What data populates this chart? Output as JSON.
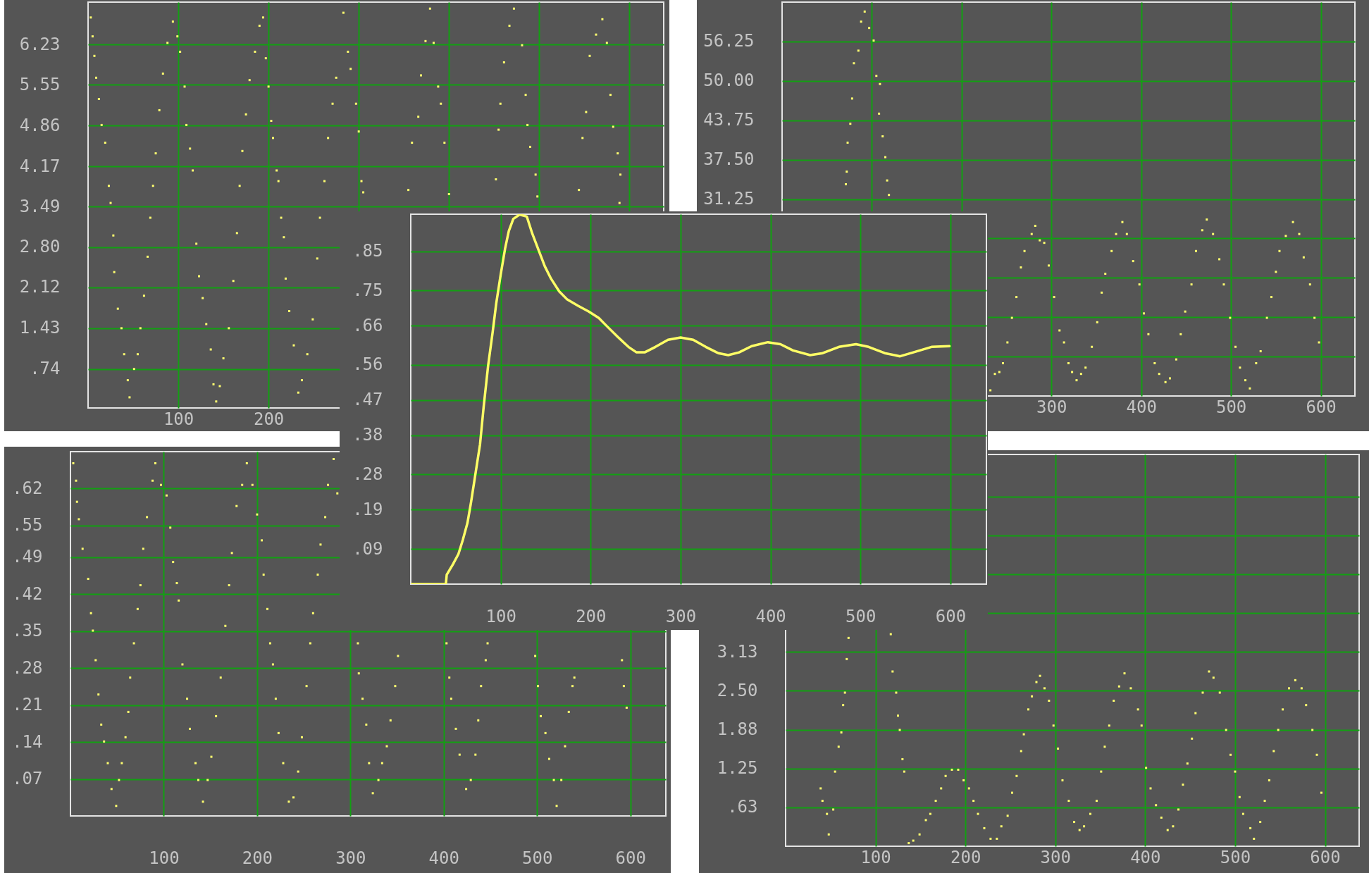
{
  "chart_data": [
    {
      "type": "scatter",
      "marker": "square",
      "color": "#ffff70",
      "grid": true,
      "xlim": [
        0,
        638
      ],
      "ylim": [
        0.08,
        6.95
      ],
      "xticks": [
        100,
        200,
        {
          "value": 300,
          "label": null
        },
        {
          "value": 400,
          "label": null
        },
        {
          "value": 500,
          "label": null
        },
        {
          "value": 600,
          "label": null
        }
      ],
      "yticks": [
        {
          "value": 0.74,
          "label": ".74"
        },
        {
          "value": 1.43,
          "label": "1.43"
        },
        {
          "value": 2.12,
          "label": "2.12"
        },
        {
          "value": 2.8,
          "label": "2.80"
        },
        {
          "value": 3.49,
          "label": "3.49"
        },
        {
          "value": 4.17,
          "label": "4.17"
        },
        {
          "value": 4.86,
          "label": "4.86"
        },
        {
          "value": 5.55,
          "label": "5.55"
        },
        {
          "value": 6.23,
          "label": "6.23"
        }
      ],
      "x": [
        3,
        5,
        7,
        9,
        12,
        15,
        19,
        23,
        25,
        28,
        29,
        33,
        37,
        40,
        44,
        46,
        51,
        55,
        58,
        62,
        66,
        69,
        72,
        75,
        79,
        83,
        88,
        94,
        99,
        102,
        107,
        109,
        113,
        116,
        120,
        123,
        127,
        131,
        136,
        139,
        142,
        146,
        150,
        156,
        161,
        165,
        168,
        171,
        175,
        179,
        185,
        190,
        194,
        197,
        200,
        203,
        205,
        209,
        211,
        214,
        217,
        219,
        223,
        228,
        233,
        237,
        243,
        249,
        254,
        257,
        262,
        266,
        271,
        275,
        283,
        288,
        291,
        297,
        300,
        303,
        305,
        355,
        359,
        366,
        369,
        374,
        379,
        383,
        388,
        391,
        395,
        400,
        452,
        455,
        457,
        461,
        467,
        472,
        481,
        485,
        487,
        490,
        496,
        498,
        544,
        548,
        552,
        556,
        563,
        570,
        575,
        579,
        582,
        587,
        590,
        589
      ],
      "values": [
        6.69,
        6.37,
        6.04,
        5.67,
        5.31,
        4.87,
        4.57,
        3.84,
        3.55,
        3.0,
        2.38,
        1.76,
        1.43,
        0.99,
        0.55,
        0.26,
        0.74,
        0.99,
        1.43,
        1.98,
        2.64,
        3.3,
        3.84,
        4.39,
        5.12,
        5.74,
        6.26,
        6.62,
        6.37,
        6.11,
        5.52,
        4.87,
        4.47,
        4.1,
        2.86,
        2.31,
        1.94,
        1.5,
        1.07,
        0.48,
        0.19,
        0.45,
        0.92,
        1.43,
        2.23,
        3.04,
        3.84,
        4.43,
        5.05,
        5.63,
        6.11,
        6.55,
        6.69,
        6.0,
        5.52,
        4.94,
        4.65,
        4.1,
        3.92,
        3.3,
        2.97,
        2.27,
        1.72,
        1.14,
        0.34,
        0.55,
        0.99,
        1.58,
        2.61,
        3.3,
        3.92,
        4.65,
        5.23,
        5.67,
        6.77,
        6.11,
        5.82,
        5.23,
        4.76,
        3.92,
        3.73,
        3.77,
        4.57,
        5.01,
        5.71,
        6.29,
        6.84,
        6.26,
        5.52,
        5.23,
        4.57,
        3.7,
        3.95,
        4.79,
        5.23,
        5.93,
        6.55,
        6.84,
        6.22,
        5.38,
        4.87,
        4.5,
        4.03,
        3.66,
        3.77,
        4.65,
        5.09,
        6.04,
        6.4,
        6.66,
        6.26,
        5.38,
        4.84,
        4.39,
        4.03,
        3.55
      ]
    },
    {
      "type": "scatter",
      "marker": "square",
      "color": "#ffff70",
      "grid": true,
      "xlim": [
        0,
        638
      ],
      "ylim": [
        0,
        62.5
      ],
      "xticks": [
        {
          "value": 100,
          "label": null
        },
        {
          "value": 200,
          "label": null
        },
        300,
        400,
        500,
        600
      ],
      "yticks": [
        {
          "value": 6.25,
          "label": null
        },
        {
          "value": 12.5,
          "label": null
        },
        {
          "value": 18.75,
          "label": null
        },
        {
          "value": 25,
          "label": null
        },
        {
          "value": 31.25,
          "label": "31.25"
        },
        {
          "value": 37.5,
          "label": "37.50"
        },
        {
          "value": 43.75,
          "label": "43.75"
        },
        {
          "value": 50,
          "label": "50.00"
        },
        {
          "value": 56.25,
          "label": "56.25"
        }
      ],
      "x": [
        71,
        72,
        73,
        76,
        78,
        80,
        85,
        88,
        92,
        97,
        102,
        105,
        109,
        108,
        112,
        115,
        117,
        119,
        232,
        237,
        242,
        246,
        251,
        256,
        261,
        266,
        270,
        278,
        282,
        287,
        292,
        297,
        303,
        309,
        314,
        319,
        323,
        328,
        333,
        338,
        345,
        351,
        356,
        360,
        367,
        372,
        379,
        384,
        391,
        398,
        403,
        408,
        415,
        420,
        427,
        432,
        439,
        444,
        449,
        456,
        461,
        468,
        473,
        480,
        487,
        492,
        499,
        505,
        510,
        516,
        521,
        528,
        533,
        540,
        545,
        550,
        554,
        561,
        569,
        576,
        581,
        588,
        593,
        598
      ],
      "values": [
        33.6,
        35.6,
        40.2,
        43.2,
        47.2,
        52.8,
        54.8,
        59.4,
        61.0,
        58.4,
        56.4,
        50.8,
        49.5,
        44.8,
        41.2,
        37.9,
        34.2,
        31.9,
        0.9,
        3.5,
        3.8,
        5.2,
        8.5,
        12.4,
        15.7,
        20.4,
        23.0,
        25.7,
        27.0,
        24.7,
        24.3,
        20.7,
        15.7,
        10.4,
        8.5,
        5.2,
        3.8,
        2.5,
        3.5,
        4.5,
        7.8,
        11.7,
        16.4,
        19.4,
        23.0,
        25.7,
        27.6,
        25.7,
        21.4,
        17.7,
        13.1,
        9.8,
        5.2,
        3.5,
        2.2,
        2.8,
        5.8,
        9.8,
        13.4,
        17.7,
        23.0,
        26.3,
        28.0,
        25.7,
        21.7,
        17.7,
        12.4,
        7.8,
        4.5,
        2.5,
        1.2,
        5.2,
        7.1,
        12.4,
        15.7,
        19.7,
        23.0,
        25.4,
        27.6,
        25.7,
        22.0,
        17.7,
        12.4,
        8.5
      ]
    },
    {
      "type": "line",
      "color": "#ffff66",
      "grid": true,
      "xlim": [
        0,
        640
      ],
      "ylim": [
        0,
        0.945
      ],
      "xticks": [
        100,
        200,
        300,
        400,
        500,
        600
      ],
      "yticks": [
        {
          "value": 0.09,
          "label": ".09"
        },
        {
          "value": 0.19,
          "label": ".19"
        },
        {
          "value": 0.28,
          "label": ".28"
        },
        {
          "value": 0.38,
          "label": ".38"
        },
        {
          "value": 0.47,
          "label": ".47"
        },
        {
          "value": 0.56,
          "label": ".56"
        },
        {
          "value": 0.66,
          "label": ".66"
        },
        {
          "value": 0.75,
          "label": ".75"
        },
        {
          "value": 0.85,
          "label": ".85"
        }
      ],
      "x": [
        0,
        39,
        40,
        47,
        53,
        58,
        63,
        67,
        72,
        77,
        81,
        86,
        91,
        95,
        100,
        105,
        109,
        114,
        121,
        129,
        135,
        142,
        149,
        156,
        165,
        174,
        186,
        198,
        209,
        218,
        230,
        242,
        251,
        260,
        272,
        286,
        300,
        314,
        328,
        342,
        353,
        365,
        379,
        397,
        411,
        425,
        444,
        458,
        476,
        495,
        509,
        527,
        544,
        560,
        579,
        599
      ],
      "values": [
        0,
        0,
        0.024,
        0.051,
        0.077,
        0.114,
        0.156,
        0.209,
        0.283,
        0.357,
        0.452,
        0.558,
        0.643,
        0.717,
        0.791,
        0.859,
        0.902,
        0.933,
        0.944,
        0.939,
        0.896,
        0.854,
        0.812,
        0.78,
        0.748,
        0.727,
        0.711,
        0.696,
        0.68,
        0.659,
        0.632,
        0.606,
        0.592,
        0.592,
        0.606,
        0.624,
        0.63,
        0.624,
        0.606,
        0.59,
        0.585,
        0.592,
        0.608,
        0.618,
        0.613,
        0.597,
        0.585,
        0.59,
        0.606,
        0.613,
        0.606,
        0.59,
        0.582,
        0.593,
        0.606,
        0.608
      ]
    },
    {
      "type": "scatter",
      "marker": "square",
      "color": "#ffff70",
      "grid": true,
      "xlim": [
        0,
        638
      ],
      "ylim": [
        0,
        0.69
      ],
      "xticks": [
        100,
        200,
        300,
        400,
        500,
        600
      ],
      "yticks": [
        {
          "value": 0.07,
          "label": ".07"
        },
        {
          "value": 0.14,
          "label": ".14"
        },
        {
          "value": 0.21,
          "label": ".21"
        },
        {
          "value": 0.28,
          "label": ".28"
        },
        {
          "value": 0.35,
          "label": ".35"
        },
        {
          "value": 0.42,
          "label": ".42"
        },
        {
          "value": 0.49,
          "label": ".49"
        },
        {
          "value": 0.55,
          "label": ".55"
        },
        {
          "value": 0.62,
          "label": ".62"
        }
      ],
      "x": [
        3,
        6,
        7,
        9,
        13,
        19,
        22,
        24,
        27,
        30,
        33,
        36,
        40,
        44,
        49,
        52,
        55,
        59,
        62,
        64,
        68,
        72,
        75,
        78,
        82,
        88,
        91,
        97,
        103,
        107,
        110,
        114,
        116,
        120,
        125,
        128,
        134,
        137,
        142,
        147,
        151,
        156,
        161,
        166,
        170,
        173,
        178,
        184,
        189,
        195,
        200,
        205,
        207,
        211,
        214,
        217,
        220,
        223,
        228,
        234,
        239,
        244,
        248,
        253,
        257,
        260,
        265,
        268,
        273,
        276,
        282,
        286,
        308,
        309,
        313,
        317,
        320,
        324,
        330,
        334,
        339,
        343,
        348,
        351,
        403,
        406,
        408,
        413,
        417,
        424,
        429,
        434,
        437,
        440,
        445,
        447,
        498,
        501,
        504,
        509,
        513,
        518,
        521,
        526,
        530,
        534,
        538,
        540,
        591,
        593,
        596
      ],
      "values": [
        0.668,
        0.635,
        0.595,
        0.562,
        0.506,
        0.449,
        0.384,
        0.351,
        0.295,
        0.23,
        0.173,
        0.141,
        0.1,
        0.051,
        0.019,
        0.068,
        0.1,
        0.149,
        0.197,
        0.262,
        0.327,
        0.392,
        0.437,
        0.506,
        0.566,
        0.635,
        0.668,
        0.627,
        0.607,
        0.546,
        0.481,
        0.441,
        0.408,
        0.287,
        0.222,
        0.165,
        0.1,
        0.068,
        0.027,
        0.068,
        0.112,
        0.189,
        0.262,
        0.36,
        0.437,
        0.498,
        0.587,
        0.627,
        0.668,
        0.627,
        0.571,
        0.522,
        0.457,
        0.392,
        0.327,
        0.287,
        0.222,
        0.157,
        0.1,
        0.027,
        0.035,
        0.084,
        0.149,
        0.246,
        0.327,
        0.384,
        0.457,
        0.514,
        0.566,
        0.627,
        0.676,
        0.611,
        0.327,
        0.27,
        0.222,
        0.173,
        0.1,
        0.043,
        0.068,
        0.1,
        0.132,
        0.181,
        0.246,
        0.303,
        0.327,
        0.262,
        0.222,
        0.165,
        0.116,
        0.051,
        0.068,
        0.116,
        0.181,
        0.246,
        0.295,
        0.327,
        0.303,
        0.246,
        0.189,
        0.157,
        0.108,
        0.068,
        0.019,
        0.068,
        0.132,
        0.197,
        0.246,
        0.262,
        0.295,
        0.246,
        0.205
      ]
    },
    {
      "type": "scatter",
      "marker": "square",
      "color": "#ffff70",
      "grid": true,
      "xlim": [
        0,
        638
      ],
      "ylim": [
        0,
        6.3
      ],
      "xticks": [
        100,
        200,
        300,
        400,
        500,
        600
      ],
      "yticks": [
        {
          "value": 0.625,
          "label": ".63"
        },
        {
          "value": 1.25,
          "label": "1.25"
        },
        {
          "value": 1.875,
          "label": "1.88"
        },
        {
          "value": 2.5,
          "label": "2.50"
        },
        {
          "value": 3.125,
          "label": "3.13"
        },
        {
          "value": 3.75,
          "label": null
        },
        {
          "value": 4.375,
          "label": null
        },
        {
          "value": 5,
          "label": null
        },
        {
          "value": 5.625,
          "label": null
        }
      ],
      "x": [
        39,
        41,
        46,
        48,
        53,
        55,
        59,
        62,
        64,
        66,
        68,
        70,
        117,
        119,
        123,
        125,
        127,
        130,
        132,
        137,
        142,
        149,
        156,
        161,
        167,
        173,
        178,
        185,
        192,
        198,
        204,
        209,
        214,
        221,
        228,
        235,
        240,
        247,
        252,
        257,
        262,
        265,
        270,
        274,
        279,
        283,
        288,
        293,
        298,
        303,
        308,
        315,
        321,
        327,
        332,
        339,
        346,
        351,
        355,
        360,
        365,
        371,
        377,
        384,
        392,
        396,
        401,
        406,
        412,
        418,
        425,
        431,
        437,
        442,
        447,
        452,
        456,
        464,
        471,
        476,
        483,
        490,
        495,
        500,
        505,
        509,
        517,
        521,
        528,
        533,
        538,
        543,
        548,
        553,
        560,
        567,
        574,
        579,
        586,
        591,
        596
      ],
      "values": [
        0.93,
        0.73,
        0.52,
        0.19,
        0.59,
        1.2,
        1.6,
        1.83,
        2.27,
        2.47,
        3.01,
        3.35,
        3.41,
        2.81,
        2.47,
        2.1,
        1.87,
        1.4,
        1.2,
        0.05,
        0.09,
        0.19,
        0.42,
        0.52,
        0.73,
        0.93,
        1.13,
        1.23,
        1.23,
        1.06,
        0.93,
        0.73,
        0.52,
        0.29,
        0.12,
        0.12,
        0.32,
        0.49,
        0.86,
        1.13,
        1.53,
        1.8,
        2.2,
        2.41,
        2.64,
        2.74,
        2.54,
        2.34,
        1.94,
        1.57,
        1.06,
        0.73,
        0.39,
        0.26,
        0.32,
        0.52,
        0.73,
        1.2,
        1.6,
        1.94,
        2.34,
        2.57,
        2.78,
        2.54,
        2.2,
        1.94,
        1.26,
        0.93,
        0.66,
        0.46,
        0.26,
        0.32,
        0.59,
        0.99,
        1.33,
        1.73,
        2.14,
        2.47,
        2.81,
        2.71,
        2.47,
        1.87,
        1.47,
        1.2,
        0.79,
        0.52,
        0.29,
        0.12,
        0.39,
        0.73,
        1.06,
        1.53,
        1.87,
        2.2,
        2.54,
        2.67,
        2.54,
        2.27,
        1.87,
        1.47,
        0.86
      ]
    }
  ]
}
